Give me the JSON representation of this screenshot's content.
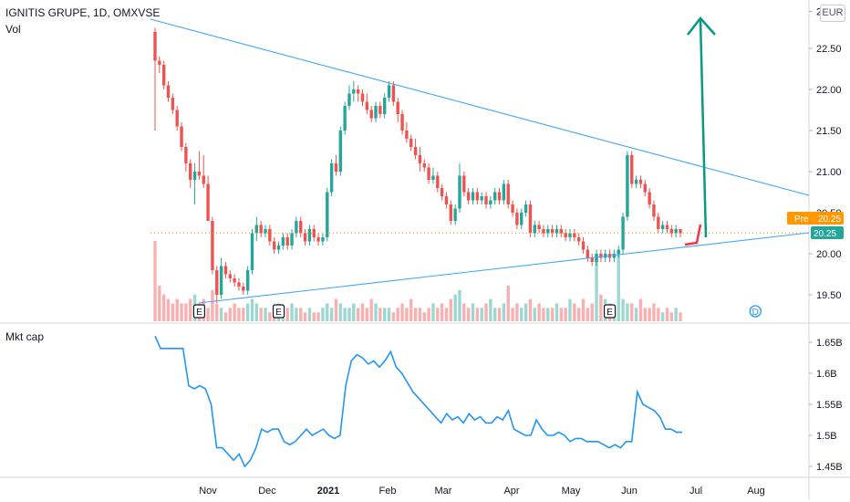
{
  "header": {
    "title": "IGNITIS GRUPE, 1D, OMXVSE",
    "volume_label": "Vol",
    "mktcap_label": "Mkt cap",
    "currency": "EUR"
  },
  "badges": {
    "pre_label": "Pre",
    "pre_value": "20.25",
    "last_value": "20.25"
  },
  "colors": {
    "up": "#26a69a",
    "down": "#ef5350",
    "trendline": "#42a5f5",
    "mktcap_line": "#2196f3",
    "arrow_up": "#089981",
    "arrow_down": "#f23645",
    "pre_badge": "#ff9800",
    "last_badge": "#26a69a"
  },
  "chart_data": [
    {
      "type": "candlestick",
      "title": "IGNITIS GRUPE, 1D, OMXVSE",
      "ylim": [
        19.2,
        23.05
      ],
      "y_ticks": [
        "19.50",
        "20.00",
        "20.50",
        "21.00",
        "21.50",
        "22.00",
        "22.50",
        "22.95"
      ],
      "x_ticks": [
        "Nov",
        "Dec",
        "2021",
        "Feb",
        "Mar",
        "Apr",
        "May",
        "Jun",
        "Jul",
        "Aug"
      ],
      "candles": [
        [
          22.7,
          22.35,
          22.75,
          21.5
        ],
        [
          22.35,
          22.3,
          22.4,
          22.2
        ],
        [
          22.3,
          22.05,
          22.35,
          22.0
        ],
        [
          22.05,
          21.9,
          22.1,
          21.85
        ],
        [
          21.9,
          21.75,
          21.95,
          21.7
        ],
        [
          21.75,
          21.55,
          21.8,
          21.5
        ],
        [
          21.55,
          21.3,
          21.6,
          21.25
        ],
        [
          21.3,
          21.1,
          21.35,
          21.0
        ],
        [
          21.1,
          20.9,
          21.15,
          20.8
        ],
        [
          20.9,
          21.0,
          21.1,
          20.6
        ],
        [
          21.0,
          20.95,
          21.25,
          20.9
        ],
        [
          20.95,
          20.85,
          21.2,
          20.8
        ],
        [
          20.85,
          20.4,
          20.95,
          20.4
        ],
        [
          20.4,
          19.8,
          20.45,
          19.75
        ],
        [
          19.8,
          19.5,
          19.85,
          19.4
        ],
        [
          19.5,
          19.85,
          19.95,
          19.45
        ],
        [
          19.85,
          19.75,
          19.9,
          19.7
        ],
        [
          19.75,
          19.7,
          19.8,
          19.65
        ],
        [
          19.7,
          19.65,
          19.75,
          19.6
        ],
        [
          19.65,
          19.6,
          19.7,
          19.55
        ],
        [
          19.6,
          19.55,
          19.65,
          19.5
        ],
        [
          19.55,
          19.8,
          19.85,
          19.5
        ],
        [
          19.8,
          20.25,
          20.3,
          19.75
        ],
        [
          20.25,
          20.35,
          20.45,
          20.15
        ],
        [
          20.35,
          20.25,
          20.4,
          20.2
        ],
        [
          20.25,
          20.3,
          20.35,
          20.2
        ],
        [
          20.3,
          20.15,
          20.35,
          20.1
        ],
        [
          20.15,
          20.05,
          20.2,
          20.0
        ],
        [
          20.05,
          20.1,
          20.15,
          20.0
        ],
        [
          20.1,
          20.2,
          20.25,
          20.05
        ],
        [
          20.2,
          20.1,
          20.25,
          20.05
        ],
        [
          20.1,
          20.25,
          20.3,
          20.05
        ],
        [
          20.25,
          20.4,
          20.45,
          20.2
        ],
        [
          20.4,
          20.25,
          20.45,
          20.2
        ],
        [
          20.25,
          20.15,
          20.3,
          20.1
        ],
        [
          20.15,
          20.3,
          20.35,
          20.1
        ],
        [
          20.3,
          20.2,
          20.35,
          20.15
        ],
        [
          20.2,
          20.15,
          20.25,
          20.1
        ],
        [
          20.15,
          20.2,
          20.25,
          20.1
        ],
        [
          20.2,
          20.75,
          20.8,
          20.15
        ],
        [
          20.75,
          21.1,
          21.15,
          20.7
        ],
        [
          21.1,
          21.0,
          21.2,
          20.95
        ],
        [
          21.0,
          21.5,
          21.55,
          20.95
        ],
        [
          21.5,
          21.8,
          21.85,
          21.45
        ],
        [
          21.8,
          21.95,
          22.05,
          21.75
        ],
        [
          21.95,
          22.0,
          22.1,
          21.85
        ],
        [
          22.0,
          21.95,
          22.05,
          21.85
        ],
        [
          21.95,
          21.85,
          22.0,
          21.8
        ],
        [
          21.85,
          21.75,
          21.95,
          21.7
        ],
        [
          21.75,
          21.65,
          21.8,
          21.6
        ],
        [
          21.65,
          21.8,
          21.85,
          21.6
        ],
        [
          21.8,
          21.7,
          21.85,
          21.65
        ],
        [
          21.7,
          21.9,
          21.95,
          21.65
        ],
        [
          21.9,
          22.05,
          22.1,
          21.85
        ],
        [
          22.05,
          21.85,
          22.1,
          21.8
        ],
        [
          21.85,
          21.7,
          21.9,
          21.6
        ],
        [
          21.7,
          21.5,
          21.75,
          21.45
        ],
        [
          21.5,
          21.4,
          21.6,
          21.35
        ],
        [
          21.4,
          21.3,
          21.45,
          21.25
        ],
        [
          21.3,
          21.2,
          21.4,
          21.15
        ],
        [
          21.2,
          21.1,
          21.3,
          21.0
        ],
        [
          21.1,
          21.05,
          21.15,
          21.0
        ],
        [
          21.05,
          20.9,
          21.1,
          20.85
        ],
        [
          20.9,
          20.95,
          21.05,
          20.85
        ],
        [
          20.95,
          20.8,
          21.0,
          20.75
        ],
        [
          20.8,
          20.7,
          20.85,
          20.65
        ],
        [
          20.7,
          20.6,
          20.75,
          20.55
        ],
        [
          20.6,
          20.4,
          20.65,
          20.35
        ],
        [
          20.4,
          20.55,
          20.6,
          20.35
        ],
        [
          20.55,
          20.95,
          21.1,
          20.5
        ],
        [
          20.95,
          20.75,
          21.0,
          20.7
        ],
        [
          20.75,
          20.65,
          20.8,
          20.6
        ],
        [
          20.65,
          20.75,
          20.8,
          20.6
        ],
        [
          20.75,
          20.65,
          20.8,
          20.6
        ],
        [
          20.65,
          20.7,
          20.75,
          20.6
        ],
        [
          20.7,
          20.6,
          20.75,
          20.55
        ],
        [
          20.6,
          20.65,
          20.7,
          20.55
        ],
        [
          20.65,
          20.75,
          20.8,
          20.6
        ],
        [
          20.75,
          20.65,
          20.8,
          20.6
        ],
        [
          20.65,
          20.85,
          20.9,
          20.6
        ],
        [
          20.85,
          20.6,
          20.9,
          20.55
        ],
        [
          20.6,
          20.5,
          20.65,
          20.45
        ],
        [
          20.5,
          20.35,
          20.55,
          20.3
        ],
        [
          20.35,
          20.5,
          20.55,
          20.3
        ],
        [
          20.5,
          20.6,
          20.65,
          20.45
        ],
        [
          20.6,
          20.25,
          20.65,
          20.2
        ],
        [
          20.25,
          20.35,
          20.4,
          20.2
        ],
        [
          20.35,
          20.3,
          20.4,
          20.25
        ],
        [
          20.3,
          20.25,
          20.35,
          20.2
        ],
        [
          20.25,
          20.3,
          20.35,
          20.2
        ],
        [
          20.3,
          20.25,
          20.35,
          20.2
        ],
        [
          20.25,
          20.3,
          20.35,
          20.2
        ],
        [
          20.3,
          20.25,
          20.35,
          20.2
        ],
        [
          20.25,
          20.2,
          20.3,
          20.15
        ],
        [
          20.2,
          20.25,
          20.3,
          20.15
        ],
        [
          20.25,
          20.2,
          20.3,
          20.15
        ],
        [
          20.2,
          20.15,
          20.25,
          20.1
        ],
        [
          20.15,
          20.05,
          20.2,
          20.0
        ],
        [
          20.05,
          19.95,
          20.1,
          19.9
        ],
        [
          19.95,
          19.9,
          20.0,
          19.85
        ],
        [
          19.9,
          20.0,
          20.05,
          19.85
        ],
        [
          20.0,
          19.95,
          20.05,
          19.9
        ],
        [
          19.95,
          20.0,
          20.05,
          19.9
        ],
        [
          20.0,
          19.95,
          20.05,
          19.9
        ],
        [
          19.95,
          20.0,
          20.05,
          19.9
        ],
        [
          20.0,
          20.05,
          20.1,
          19.95
        ],
        [
          20.05,
          20.45,
          20.5,
          20.0
        ],
        [
          20.45,
          21.2,
          21.25,
          20.4
        ],
        [
          21.2,
          20.85,
          21.25,
          20.8
        ],
        [
          20.85,
          20.9,
          20.95,
          20.8
        ],
        [
          20.9,
          20.85,
          20.95,
          20.8
        ],
        [
          20.85,
          20.75,
          20.9,
          20.7
        ],
        [
          20.75,
          20.6,
          20.8,
          20.55
        ],
        [
          20.6,
          20.45,
          20.65,
          20.4
        ],
        [
          20.45,
          20.3,
          20.5,
          20.25
        ],
        [
          20.3,
          20.35,
          20.4,
          20.25
        ],
        [
          20.35,
          20.3,
          20.4,
          20.25
        ],
        [
          20.3,
          20.25,
          20.35,
          20.2
        ],
        [
          20.25,
          20.3,
          20.35,
          20.2
        ],
        [
          20.3,
          20.25,
          20.3,
          20.2
        ]
      ],
      "volume": [
        18,
        8,
        6,
        5,
        4,
        5,
        4,
        4,
        5,
        6,
        4,
        5,
        3,
        7,
        4,
        3,
        2,
        3,
        4,
        3,
        3,
        4,
        5,
        4,
        3,
        3,
        2,
        3,
        4,
        3,
        3,
        4,
        3,
        3,
        2,
        3,
        2,
        2,
        3,
        4,
        3,
        5,
        4,
        3,
        3,
        4,
        3,
        4,
        3,
        5,
        4,
        3,
        3,
        3,
        2,
        3,
        4,
        3,
        5,
        3,
        3,
        2,
        3,
        4,
        3,
        4,
        3,
        5,
        6,
        7,
        4,
        3,
        4,
        3,
        3,
        4,
        5,
        3,
        3,
        4,
        8,
        3,
        4,
        3,
        4,
        5,
        3,
        4,
        3,
        3,
        3,
        4,
        3,
        3,
        5,
        4,
        3,
        5,
        3,
        4,
        14,
        6,
        5,
        4,
        3,
        16,
        5,
        4,
        4,
        3,
        5,
        3,
        3,
        4,
        3,
        2,
        3,
        2,
        3,
        2
      ],
      "event_markers": [
        {
          "label": "E",
          "index": 10
        },
        {
          "label": "E",
          "index": 28
        },
        {
          "label": "E",
          "index": 103
        },
        {
          "label": "D",
          "index": 136
        },
        {
          "label": "E",
          "index": 167
        }
      ]
    },
    {
      "type": "line",
      "title": "Mkt cap",
      "ylim": [
        1.425,
        1.68
      ],
      "y_ticks": [
        "1.45B",
        "1.5B",
        "1.55B",
        "1.6B",
        "1.65B"
      ],
      "values": [
        1.66,
        1.64,
        1.64,
        1.64,
        1.64,
        1.64,
        1.58,
        1.575,
        1.58,
        1.575,
        1.55,
        1.48,
        1.48,
        1.47,
        1.46,
        1.47,
        1.45,
        1.46,
        1.48,
        1.51,
        1.505,
        1.51,
        1.51,
        1.49,
        1.485,
        1.49,
        1.5,
        1.51,
        1.5,
        1.505,
        1.51,
        1.5,
        1.495,
        1.5,
        1.58,
        1.62,
        1.63,
        1.625,
        1.615,
        1.62,
        1.61,
        1.62,
        1.635,
        1.61,
        1.6,
        1.585,
        1.57,
        1.56,
        1.55,
        1.54,
        1.53,
        1.52,
        1.535,
        1.525,
        1.53,
        1.52,
        1.535,
        1.525,
        1.53,
        1.52,
        1.52,
        1.53,
        1.525,
        1.54,
        1.51,
        1.505,
        1.5,
        1.5,
        1.525,
        1.51,
        1.5,
        1.5,
        1.505,
        1.5,
        1.49,
        1.495,
        1.495,
        1.49,
        1.49,
        1.49,
        1.485,
        1.48,
        1.485,
        1.48,
        1.49,
        1.49,
        1.57,
        1.55,
        1.545,
        1.54,
        1.53,
        1.51,
        1.51,
        1.505,
        1.505
      ]
    }
  ]
}
